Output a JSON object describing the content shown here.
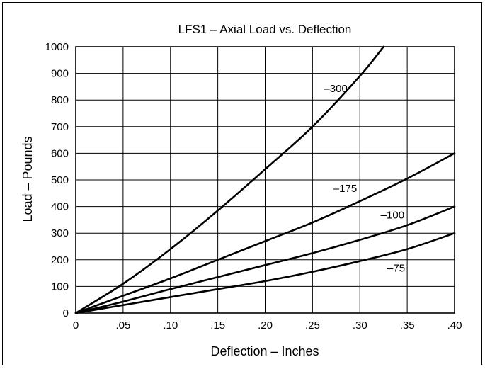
{
  "chart_data": {
    "type": "line",
    "title": "LFS1 – Axial Load vs. Deflection",
    "xlabel": "Deflection – Inches",
    "ylabel": "Load – Pounds",
    "xlim": [
      0,
      0.4
    ],
    "ylim": [
      0,
      1000
    ],
    "x_ticks": [
      0,
      0.05,
      0.1,
      0.15,
      0.2,
      0.25,
      0.3,
      0.35,
      0.4
    ],
    "x_tick_labels": [
      "0",
      ".05",
      ".10",
      ".15",
      ".20",
      ".25",
      ".30",
      ".35",
      ".40"
    ],
    "y_ticks": [
      0,
      100,
      200,
      300,
      400,
      500,
      600,
      700,
      800,
      900,
      1000
    ],
    "y_tick_labels": [
      "0",
      "100",
      "200",
      "300",
      "400",
      "500",
      "600",
      "700",
      "800",
      "900",
      "1000"
    ],
    "grid": true,
    "legend": "none",
    "line_color": "#000000",
    "series": [
      {
        "name": "–300",
        "x": [
          0,
          0.05,
          0.1,
          0.15,
          0.2,
          0.25,
          0.3,
          0.325
        ],
        "y": [
          0,
          110,
          240,
          385,
          540,
          700,
          890,
          1000
        ]
      },
      {
        "name": "–175",
        "x": [
          0,
          0.05,
          0.1,
          0.15,
          0.2,
          0.25,
          0.3,
          0.35,
          0.4
        ],
        "y": [
          0,
          65,
          130,
          200,
          270,
          340,
          420,
          505,
          600
        ]
      },
      {
        "name": "–100",
        "x": [
          0,
          0.05,
          0.1,
          0.15,
          0.2,
          0.25,
          0.3,
          0.35,
          0.4
        ],
        "y": [
          0,
          43,
          90,
          135,
          180,
          225,
          275,
          330,
          400
        ]
      },
      {
        "name": "–75",
        "x": [
          0,
          0.05,
          0.1,
          0.15,
          0.2,
          0.25,
          0.3,
          0.35,
          0.4
        ],
        "y": [
          0,
          30,
          60,
          90,
          120,
          155,
          195,
          240,
          300
        ]
      }
    ],
    "series_labels": [
      {
        "text": "–300",
        "x": 0.262,
        "y": 830
      },
      {
        "text": "–175",
        "x": 0.272,
        "y": 455
      },
      {
        "text": "–100",
        "x": 0.322,
        "y": 355
      },
      {
        "text": "–75",
        "x": 0.329,
        "y": 155
      }
    ]
  }
}
